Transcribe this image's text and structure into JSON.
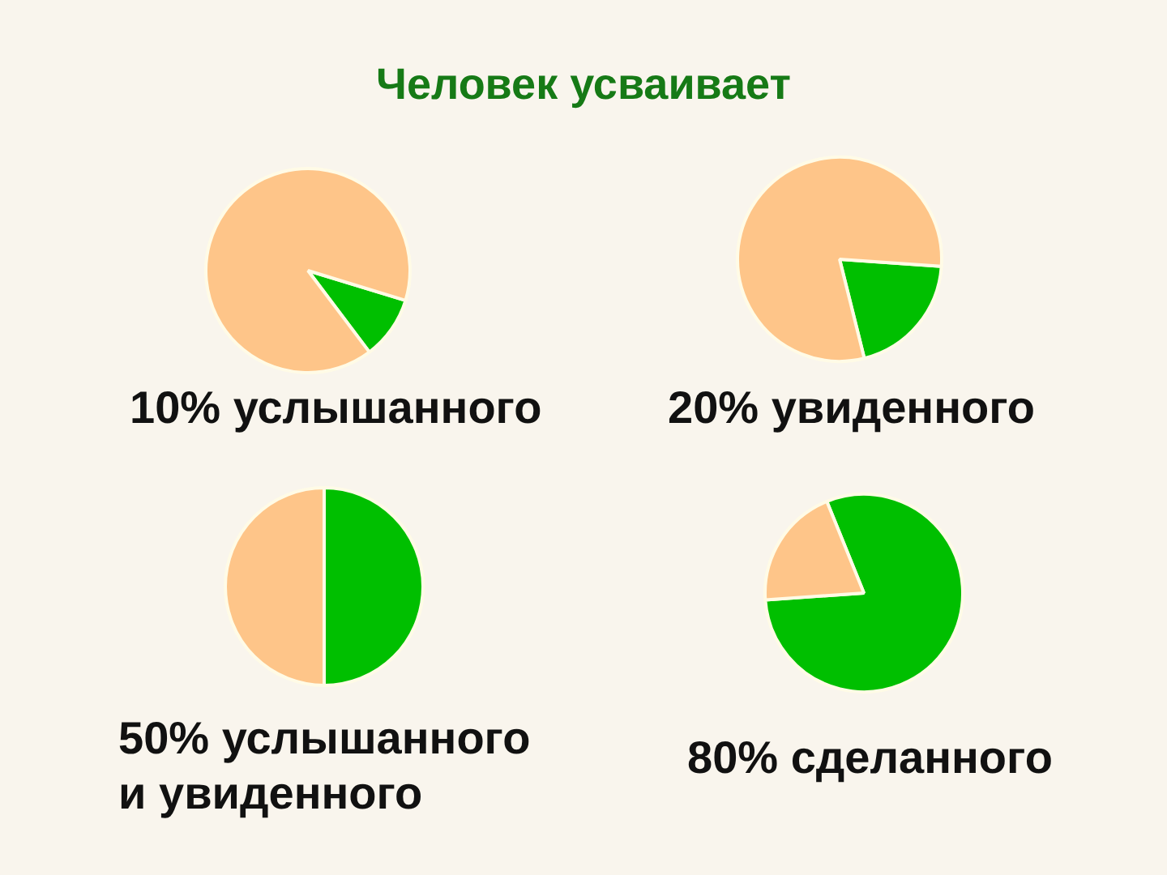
{
  "chart_data": [
    {
      "type": "other",
      "title": "Человек усваивает"
    },
    {
      "type": "pie",
      "title": "10% услышанного",
      "categories": [
        null,
        null
      ],
      "values": [
        10,
        90
      ],
      "colors": [
        "#00bf00",
        "#fec589"
      ]
    },
    {
      "type": "pie",
      "title": "20% увиденного",
      "categories": [
        null,
        null
      ],
      "values": [
        20,
        80
      ],
      "colors": [
        "#00bf00",
        "#fec589"
      ]
    },
    {
      "type": "pie",
      "title": "50% услышанного и увиденного",
      "categories": [
        null,
        null
      ],
      "values": [
        50,
        50
      ],
      "colors": [
        "#00bf00",
        "#fec589"
      ]
    },
    {
      "type": "pie",
      "title": "80% сделанного",
      "categories": [
        null,
        null
      ],
      "values": [
        80,
        20
      ],
      "colors": [
        "#00bf00",
        "#fec589"
      ]
    }
  ]
}
